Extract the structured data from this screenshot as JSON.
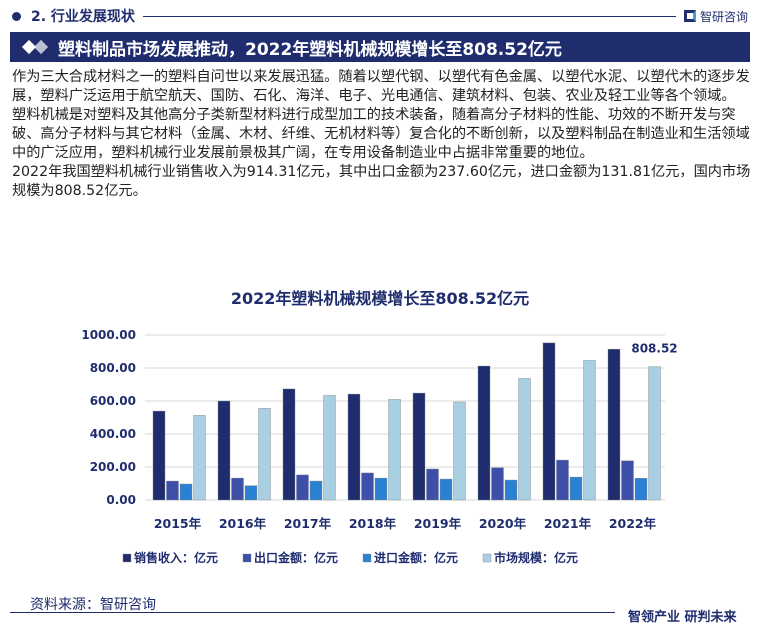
{
  "section": {
    "title": "2. 行业发展现状",
    "brand": "智研咨询"
  },
  "banner": {
    "title": "塑料制品市场发展推动，2022年塑料机械规模增长至808.52亿元"
  },
  "paragraphs": [
    "作为三大合成材料之一的塑料自问世以来发展迅猛。随着以塑代钢、以塑代有色金属、以塑代水泥、以塑代木的逐步发展，塑料广泛运用于航空航天、国防、石化、海洋、电子、光电通信、建筑材料、包装、农业及轻工业等各个领域。",
    "塑料机械是对塑料及其他高分子类新型材料进行成型加工的技术装备，随着高分子材料的性能、功效的不断开发与突破、高分子材料与其它材料（金属、木材、纤维、无机材料等）复合化的不断创新，以及塑料制品在制造业和生活领域中的广泛应用，塑料机械行业发展前景极其广阔，在专用设备制造业中占据非常重要的地位。",
    "2022年我国塑料机械行业销售收入为914.31亿元，其中出口金额为237.60亿元，进口金额为131.81亿元，国内市场规模为808.52亿元。"
  ],
  "chart_data": {
    "type": "bar",
    "title": "2022年塑料机械规模增长至808.52亿元",
    "categories": [
      "2015年",
      "2016年",
      "2017年",
      "2018年",
      "2019年",
      "2020年",
      "2021年",
      "2022年"
    ],
    "series": [
      {
        "name": "销售收入：亿元",
        "color": "#1f2d6e",
        "values": [
          539,
          600,
          673,
          642,
          648,
          812,
          952,
          914.31
        ]
      },
      {
        "name": "出口金额：亿元",
        "color": "#3d4fa8",
        "values": [
          115,
          133,
          152,
          164,
          188,
          196,
          242,
          237.6
        ]
      },
      {
        "name": "进口金额：亿元",
        "color": "#2a80d2",
        "values": [
          97,
          87,
          115,
          133,
          127,
          121,
          139,
          131.81
        ]
      },
      {
        "name": "市场规模：亿元",
        "color": "#a9cfe3",
        "values": [
          513,
          556,
          634,
          610,
          594,
          737,
          846,
          808.52
        ]
      }
    ],
    "yticks": [
      "0.00",
      "200.00",
      "400.00",
      "600.00",
      "800.00",
      "1000.00"
    ],
    "ylim": [
      0,
      1000
    ],
    "grid": true,
    "legend": "bottom",
    "data_labels": [
      {
        "series": 3,
        "index": 7,
        "text": "808.52"
      }
    ]
  },
  "footer": {
    "source": "资料来源：智研咨询",
    "slogan": "智领产业 研判未来"
  }
}
